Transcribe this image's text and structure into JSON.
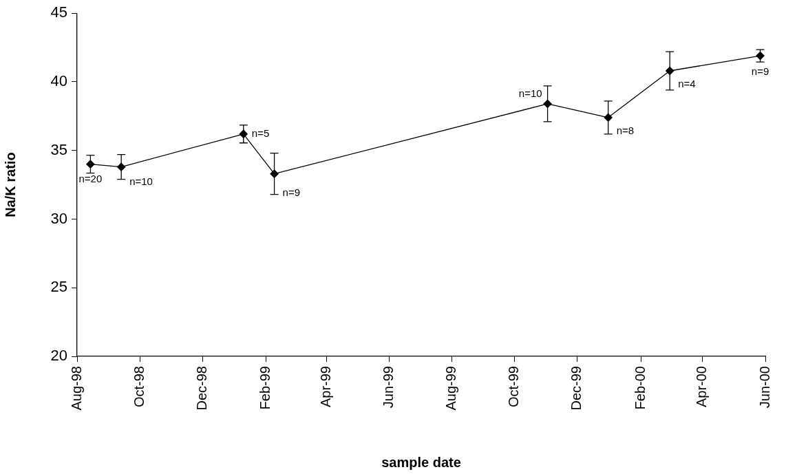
{
  "chart_data": {
    "type": "line",
    "xlabel": "sample date",
    "ylabel": "Na/K ratio",
    "x": [
      "1998-08-14",
      "1998-09-13",
      "1999-01-10",
      "1999-02-09",
      "1999-11-02",
      "1999-12-31",
      "2000-02-29",
      "2000-05-27"
    ],
    "series": [
      {
        "color": "#000000",
        "values": [
          34.0,
          33.8,
          36.2,
          33.3,
          38.4,
          37.4,
          40.8,
          41.9
        ],
        "errors": [
          0.65,
          0.9,
          0.65,
          1.5,
          1.3,
          1.2,
          1.4,
          0.45
        ]
      }
    ],
    "xlim": [
      "1998-08-01",
      "2000-06-01"
    ],
    "xticks": [
      {
        "value": "1998-08-01",
        "label": "Aug-98"
      },
      {
        "value": "1998-10-01",
        "label": "Oct-98"
      },
      {
        "value": "1998-12-01",
        "label": "Dec-98"
      },
      {
        "value": "1999-02-01",
        "label": "Feb-99"
      },
      {
        "value": "1999-04-01",
        "label": "Apr-99"
      },
      {
        "value": "1999-06-01",
        "label": "Jun-99"
      },
      {
        "value": "1999-08-01",
        "label": "Aug-99"
      },
      {
        "value": "1999-10-01",
        "label": "Oct-99"
      },
      {
        "value": "1999-12-01",
        "label": "Dec-99"
      },
      {
        "value": "2000-02-01",
        "label": "Feb-00"
      },
      {
        "value": "2000-04-01",
        "label": "Apr-00"
      },
      {
        "value": "2000-06-01",
        "label": "Jun-00"
      }
    ],
    "ylim": [
      20,
      45
    ],
    "yticks": [
      20,
      25,
      30,
      35,
      40,
      45
    ],
    "grid": false,
    "legend": false,
    "marker": "diamond",
    "line_style": "solid",
    "annotations": [
      {
        "text": "n=20",
        "x": "1998-08-14",
        "y": 34.0
      },
      {
        "text": "n=10",
        "x": "1998-09-13",
        "y": 33.8
      },
      {
        "text": "n=5",
        "x": "1999-01-10",
        "y": 36.2
      },
      {
        "text": "n=9",
        "x": "1999-02-09",
        "y": 33.3
      },
      {
        "text": "n=10",
        "x": "1999-11-02",
        "y": 38.4
      },
      {
        "text": "n=8",
        "x": "1999-12-31",
        "y": 37.4
      },
      {
        "text": "n=4",
        "x": "2000-02-29",
        "y": 40.8
      },
      {
        "text": "n=9",
        "x": "2000-05-27",
        "y": 41.9
      }
    ]
  }
}
